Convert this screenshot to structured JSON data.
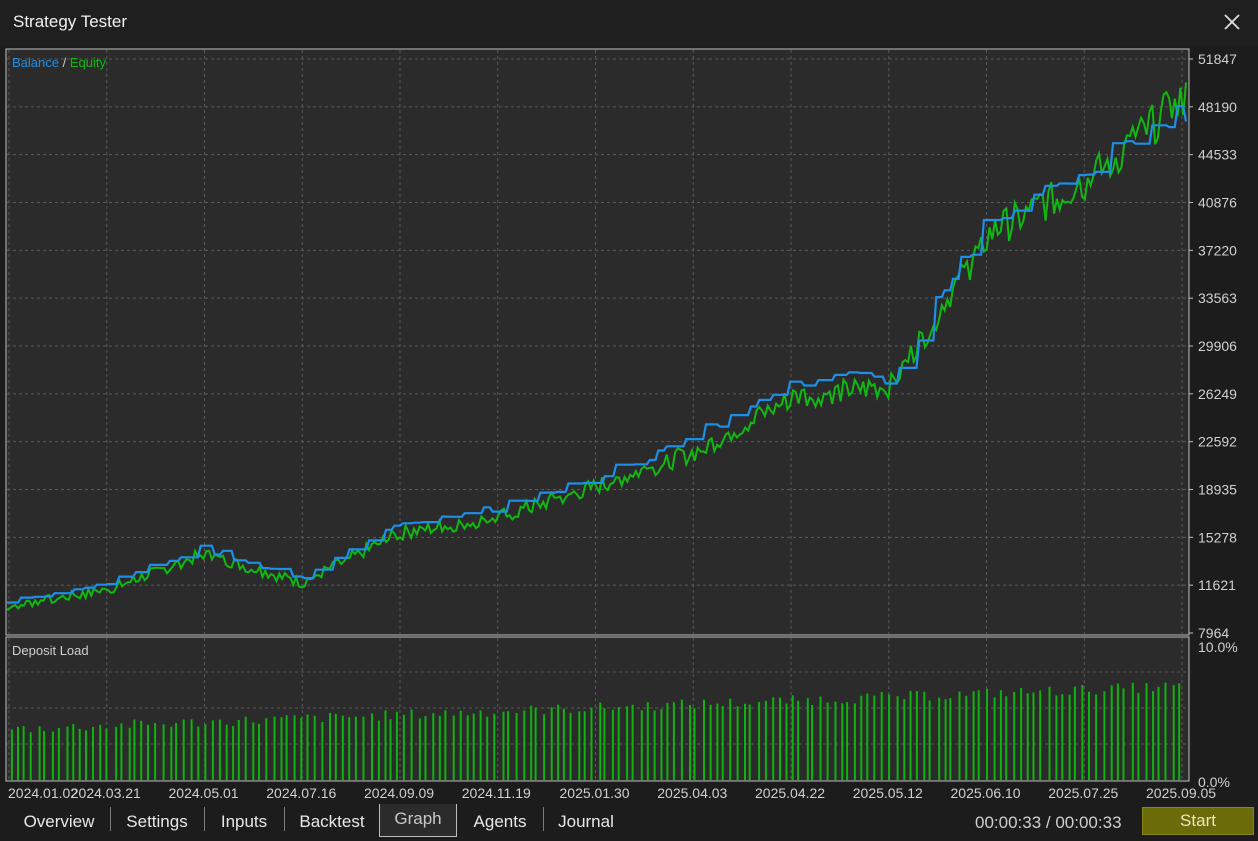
{
  "window": {
    "title": "Strategy Tester"
  },
  "legend": {
    "balance": "Balance",
    "separator": " / ",
    "equity": "Equity"
  },
  "deposit_label": "Deposit Load",
  "tabs": [
    "Overview",
    "Settings",
    "Inputs",
    "Backtest",
    "Graph",
    "Agents",
    "Journal"
  ],
  "active_tab": "Graph",
  "timer": "00:00:33 / 00:00:33",
  "start_label": "Start",
  "colors": {
    "balance": "#1e8fe6",
    "equity": "#11b811",
    "deposit_bar": "#0fb30f",
    "grid": "#5a5a5a",
    "background": "#2b2b2b"
  },
  "chart_data": [
    {
      "type": "line",
      "title": "",
      "yticks": [
        51847,
        48190,
        44533,
        40876,
        37220,
        33563,
        29906,
        26249,
        22592,
        18935,
        15278,
        11621,
        7964
      ],
      "ylim": [
        7964,
        51847
      ],
      "x": [
        "2024.01.02",
        "2024.03.21",
        "2024.05.01",
        "2024.07.16",
        "2024.09.09",
        "2024.11.19",
        "2025.01.30",
        "2025.04.03",
        "2025.04.22",
        "2025.05.12",
        "2025.06.10",
        "2025.07.25",
        "2025.09.05"
      ],
      "series": [
        {
          "name": "Balance",
          "values": [
            10300,
            11800,
            14500,
            12200,
            16300,
            17500,
            19800,
            23000,
            27300,
            27500,
            39500,
            43600,
            47800
          ]
        },
        {
          "name": "Equity",
          "values": [
            10000,
            11200,
            14000,
            11800,
            15600,
            16800,
            19200,
            21800,
            26000,
            26900,
            38500,
            42500,
            49000
          ]
        }
      ],
      "grid": true,
      "legend": "top-left"
    },
    {
      "type": "bar",
      "title": "Deposit Load",
      "ylabels": [
        "10.0%",
        "0.0%"
      ],
      "ylim": [
        0,
        10
      ],
      "start_level": 3.8,
      "end_level": 7.0,
      "bar_count": 170
    }
  ]
}
